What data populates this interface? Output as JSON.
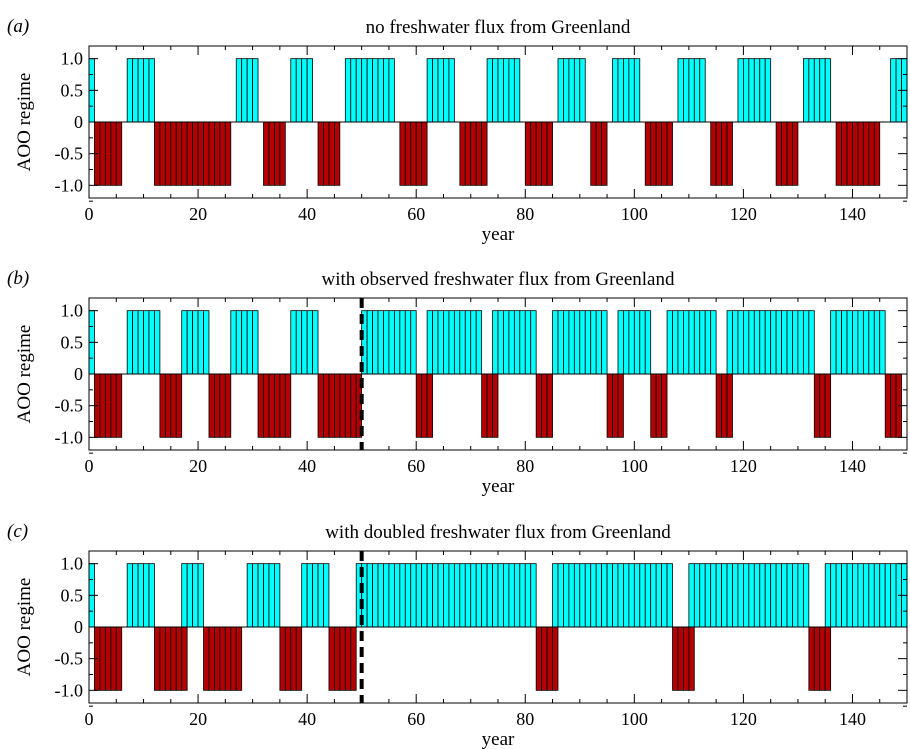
{
  "chart_data": [
    {
      "type": "bar",
      "panel_label": "(a)",
      "title": "no freshwater flux from Greenland",
      "xlabel": "year",
      "ylabel": "AOO regime",
      "xlim": [
        0,
        150
      ],
      "ylim": [
        -1.2,
        1.2
      ],
      "xticks": [
        "0",
        "20",
        "40",
        "60",
        "80",
        "100",
        "120",
        "140"
      ],
      "yticks": [
        "1.0",
        "0.5",
        "0",
        "-0.5",
        "-1.0"
      ],
      "divider_year": null,
      "series": [
        {
          "color": "#00ffff",
          "value": 1.0,
          "segments": [
            [
              0,
              1
            ],
            [
              7,
              12
            ],
            [
              27,
              31
            ],
            [
              37,
              41
            ],
            [
              47,
              56
            ],
            [
              62,
              67
            ],
            [
              73,
              79
            ],
            [
              86,
              91
            ],
            [
              96,
              101
            ],
            [
              108,
              113
            ],
            [
              119,
              125
            ],
            [
              131,
              136
            ],
            [
              147,
              150
            ]
          ]
        },
        {
          "color": "#b40000",
          "value": -1.0,
          "segments": [
            [
              1,
              6
            ],
            [
              12,
              26
            ],
            [
              32,
              36
            ],
            [
              42,
              46
            ],
            [
              57,
              62
            ],
            [
              68,
              73
            ],
            [
              80,
              85
            ],
            [
              92,
              95
            ],
            [
              102,
              107
            ],
            [
              114,
              118
            ],
            [
              126,
              130
            ],
            [
              137,
              145
            ]
          ]
        }
      ]
    },
    {
      "type": "bar",
      "panel_label": "(b)",
      "title": "with observed freshwater flux from Greenland",
      "xlabel": "year",
      "ylabel": "AOO regime",
      "xlim": [
        0,
        150
      ],
      "ylim": [
        -1.2,
        1.2
      ],
      "xticks": [
        "0",
        "20",
        "40",
        "60",
        "80",
        "100",
        "120",
        "140"
      ],
      "yticks": [
        "1.0",
        "0.5",
        "0",
        "-0.5",
        "-1.0"
      ],
      "divider_year": 50,
      "series": [
        {
          "color": "#00ffff",
          "value": 1.0,
          "segments": [
            [
              0,
              1
            ],
            [
              7,
              13
            ],
            [
              17,
              22
            ],
            [
              26,
              31
            ],
            [
              37,
              42
            ],
            [
              50,
              60
            ],
            [
              62,
              72
            ],
            [
              74,
              82
            ],
            [
              85,
              95
            ],
            [
              97,
              103
            ],
            [
              106,
              115
            ],
            [
              117,
              133
            ],
            [
              136,
              146
            ]
          ]
        },
        {
          "color": "#b40000",
          "value": -1.0,
          "segments": [
            [
              1,
              6
            ],
            [
              13,
              17
            ],
            [
              22,
              26
            ],
            [
              31,
              37
            ],
            [
              42,
              50
            ],
            [
              60,
              63
            ],
            [
              72,
              75
            ],
            [
              82,
              85
            ],
            [
              95,
              98
            ],
            [
              103,
              106
            ],
            [
              115,
              118
            ],
            [
              133,
              136
            ],
            [
              146,
              149
            ]
          ]
        }
      ]
    },
    {
      "type": "bar",
      "panel_label": "(c)",
      "title": "with doubled freshwater flux from Greenland",
      "xlabel": "year",
      "ylabel": "AOO regime",
      "xlim": [
        0,
        150
      ],
      "ylim": [
        -1.2,
        1.2
      ],
      "xticks": [
        "0",
        "20",
        "40",
        "60",
        "80",
        "100",
        "120",
        "140"
      ],
      "yticks": [
        "1.0",
        "0.5",
        "0",
        "-0.5",
        "-1.0"
      ],
      "divider_year": 50,
      "series": [
        {
          "color": "#00ffff",
          "value": 1.0,
          "segments": [
            [
              0,
              1
            ],
            [
              7,
              12
            ],
            [
              17,
              21
            ],
            [
              29,
              35
            ],
            [
              39,
              44
            ],
            [
              49,
              82
            ],
            [
              85,
              107
            ],
            [
              110,
              132
            ],
            [
              135,
              150
            ]
          ]
        },
        {
          "color": "#b40000",
          "value": -1.0,
          "segments": [
            [
              1,
              6
            ],
            [
              12,
              18
            ],
            [
              21,
              28
            ],
            [
              35,
              39
            ],
            [
              44,
              49
            ],
            [
              82,
              86
            ],
            [
              107,
              111
            ],
            [
              132,
              136
            ]
          ]
        }
      ]
    }
  ]
}
